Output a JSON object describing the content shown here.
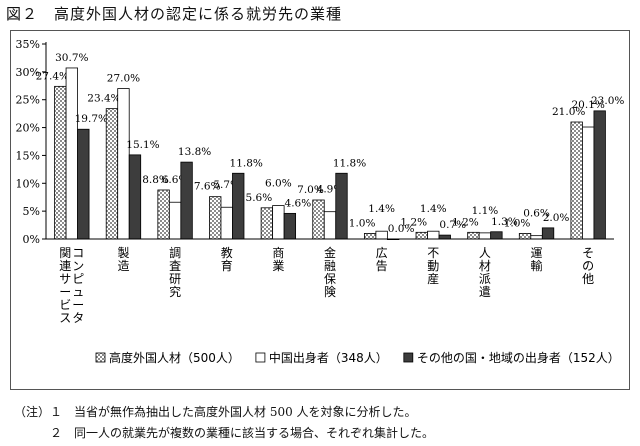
{
  "title": "図２　高度外国人材の認定に係る就労先の業種",
  "notes": {
    "line1": "（注）１　当省が無作為抽出した高度外国人材 500 人を対象に分析した。",
    "line2": "　　　２　同一人の就業先が複数の業種に該当する場合、それぞれ集計した。"
  },
  "chart_data": {
    "type": "bar",
    "categories": [
      "コンピュータ関連サービス",
      "製造",
      "調査研究",
      "教育",
      "商業",
      "金融保険",
      "広告",
      "不動産",
      "人材派遣",
      "運輸",
      "その他"
    ],
    "category_lines": [
      [
        [
          "関",
          "連",
          "サ",
          "ー",
          "ビ",
          "ス"
        ],
        [
          "コ",
          "ン",
          "ピ",
          "ュ",
          "ー",
          "タ"
        ]
      ],
      [
        [
          "製",
          "造"
        ]
      ],
      [
        [
          "調",
          "査",
          "研",
          "究"
        ]
      ],
      [
        [
          "教",
          "育"
        ]
      ],
      [
        [
          "商",
          "業"
        ]
      ],
      [
        [
          "金",
          "融",
          "保",
          "険"
        ]
      ],
      [
        [
          "広",
          "告"
        ]
      ],
      [
        [
          "不",
          "動",
          "産"
        ]
      ],
      [
        [
          "人",
          "材",
          "派",
          "遣"
        ]
      ],
      [
        [
          "運",
          "輸"
        ]
      ],
      [
        [
          "そ",
          "の",
          "他"
        ]
      ]
    ],
    "series": [
      {
        "name": "高度外国人材（500人）",
        "values": [
          27.4,
          23.4,
          8.8,
          7.6,
          5.6,
          7.0,
          1.0,
          1.2,
          1.2,
          1.0,
          21.0
        ],
        "labels": [
          "27.4%",
          "23.4%",
          "8.8%",
          "7.6%",
          "5.6%",
          "7.0%",
          "1.0%",
          "1.2%",
          "1.2%",
          "1.0%",
          "21.0%"
        ],
        "fill": "check"
      },
      {
        "name": "中国出身者（348人）",
        "values": [
          30.7,
          27.0,
          6.6,
          5.7,
          6.0,
          4.9,
          1.4,
          1.4,
          1.1,
          0.6,
          20.1
        ],
        "labels": [
          "30.7%",
          "27.0%",
          "6.6%",
          "5.7%",
          "6.0%",
          "4.9%",
          "1.4%",
          "1.4%",
          "1.1%",
          "0.6%",
          "20.1%"
        ],
        "fill": "white"
      },
      {
        "name": "その他の国・地域の出身者（152人）",
        "values": [
          19.7,
          15.1,
          13.8,
          11.8,
          4.6,
          11.8,
          0.0,
          0.7,
          1.3,
          2.0,
          23.0
        ],
        "labels": [
          "19.7%",
          "15.1%",
          "13.8%",
          "11.8%",
          "4.6%",
          "11.8%",
          "0.0%",
          "0.7%",
          "1.3%",
          "2.0%",
          "23.0%"
        ],
        "fill": "dark"
      }
    ],
    "yticks": [
      "0%",
      "5%",
      "10%",
      "15%",
      "20%",
      "25%",
      "30%",
      "35%"
    ],
    "ylim": [
      0,
      35
    ],
    "grid": false,
    "legend": "bottom",
    "colors": {
      "dark": "#3d3d3d",
      "check": "#8c8c8c",
      "outline": "#000000"
    }
  }
}
